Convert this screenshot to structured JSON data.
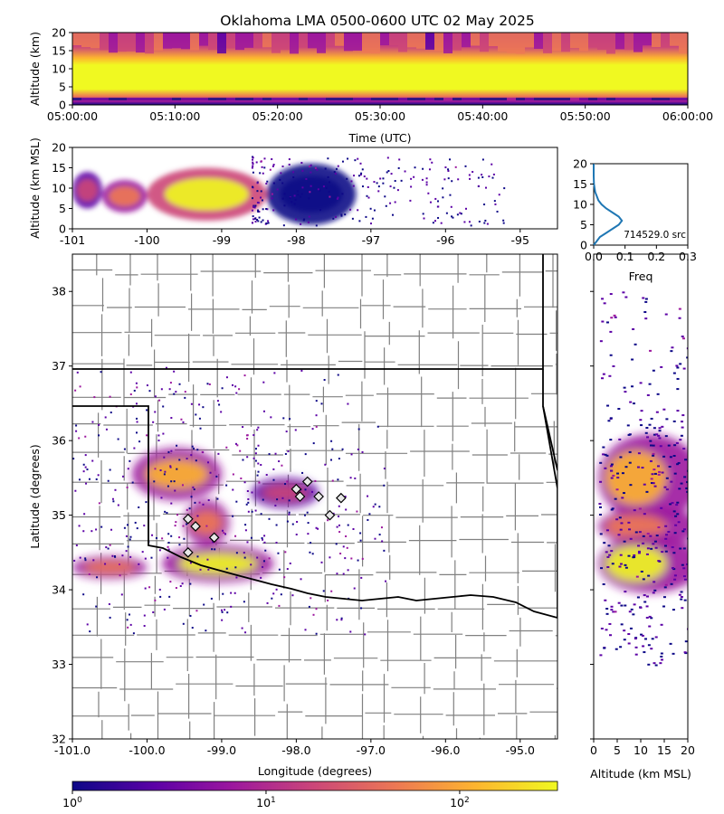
{
  "title": "Oklahoma LMA 0500-0600 UTC 02 May 2025",
  "colors": {
    "cmap": [
      "#0d0887",
      "#5c01a6",
      "#9c179e",
      "#cc4778",
      "#ed7953",
      "#fdb42f",
      "#f0f921"
    ],
    "counties": "#808080",
    "borders": "#000000",
    "diamond_fill": "#e8e8e8",
    "diamond_stroke": "#000000",
    "histogram_line": "#1f77b4"
  },
  "chart_data": [
    {
      "id": "time_height",
      "type": "heatmap",
      "xlabel": "Time (UTC)",
      "ylabel": "Altitude (km)",
      "xticks": [
        "05:00:00",
        "05:10:00",
        "05:20:00",
        "05:30:00",
        "05:40:00",
        "05:50:00",
        "06:00:00"
      ],
      "yticks": [
        "0",
        "5",
        "10",
        "15",
        "20"
      ],
      "xlim": [
        "05:00:00",
        "06:00:00"
      ],
      "ylim": [
        0,
        20
      ]
    },
    {
      "id": "lon_alt",
      "type": "heatmap",
      "ylabel": "Altitude (km MSL)",
      "xticks": [
        "-101",
        "-100",
        "-99",
        "-98",
        "-97",
        "-96",
        "-95"
      ],
      "yticks": [
        "0",
        "5",
        "10",
        "15",
        "20"
      ],
      "xlim": [
        -101,
        -94.5
      ],
      "ylim": [
        0,
        20
      ],
      "density": [
        {
          "lon": [
            -101.0,
            -100.6
          ],
          "alt": [
            5,
            14
          ],
          "level": 0.55
        },
        {
          "lon": [
            -100.6,
            -100.0
          ],
          "alt": [
            4,
            12
          ],
          "level": 0.6
        },
        {
          "lon": [
            -100.0,
            -98.4
          ],
          "alt": [
            2,
            15
          ],
          "level": 0.9
        },
        {
          "lon": [
            -98.4,
            -97.2
          ],
          "alt": [
            1,
            16
          ],
          "level": 0.1
        }
      ]
    },
    {
      "id": "alt_histogram",
      "type": "line",
      "xlabel": "Freq",
      "xticks": [
        "0.0",
        "0.1",
        "0.2",
        "0.3"
      ],
      "yticks": [
        "0",
        "5",
        "10",
        "15",
        "20"
      ],
      "xlim": [
        0,
        0.3
      ],
      "ylim": [
        0,
        20
      ],
      "annotation": "714529.0 src",
      "x": [
        0.0,
        0.01,
        0.02,
        0.04,
        0.06,
        0.08,
        0.09,
        0.08,
        0.06,
        0.04,
        0.025,
        0.015,
        0.01,
        0.005,
        0.003,
        0.001,
        0.0,
        0.0
      ],
      "y": [
        0,
        1,
        2,
        3,
        4,
        5,
        6,
        7,
        8,
        9,
        10,
        11,
        12,
        13,
        14,
        15,
        17,
        20
      ]
    },
    {
      "id": "plan_view",
      "type": "heatmap",
      "xlabel": "Longitude (degrees)",
      "ylabel": "Latitude (degrees)",
      "xticks": [
        "-101.0",
        "-100.0",
        "-99.0",
        "-98.0",
        "-97.0",
        "-96.0",
        "-95.0"
      ],
      "yticks": [
        "32",
        "33",
        "34",
        "35",
        "36",
        "37",
        "38"
      ],
      "xlim": [
        -101.0,
        -94.5
      ],
      "ylim": [
        32,
        38.5
      ],
      "density": [
        {
          "lon": [
            -100.2,
            -99.0
          ],
          "lat": [
            35.2,
            35.9
          ],
          "level": 0.85
        },
        {
          "lon": [
            -99.8,
            -98.3
          ],
          "lat": [
            34.1,
            34.6
          ],
          "level": 0.95
        },
        {
          "lon": [
            -101.0,
            -100.0
          ],
          "lat": [
            34.15,
            34.45
          ],
          "level": 0.7
        },
        {
          "lon": [
            -99.5,
            -98.9
          ],
          "lat": [
            34.6,
            35.2
          ],
          "level": 0.7
        },
        {
          "lon": [
            -98.6,
            -97.7
          ],
          "lat": [
            35.1,
            35.5
          ],
          "level": 0.5
        }
      ],
      "diamonds": [
        {
          "lon": -98.0,
          "lat": 35.35
        },
        {
          "lon": -97.95,
          "lat": 35.25
        },
        {
          "lon": -97.7,
          "lat": 35.25
        },
        {
          "lon": -97.4,
          "lat": 35.23
        },
        {
          "lon": -97.55,
          "lat": 35.0
        },
        {
          "lon": -99.45,
          "lat": 34.95
        },
        {
          "lon": -99.35,
          "lat": 34.85
        },
        {
          "lon": -99.1,
          "lat": 34.7
        },
        {
          "lon": -99.45,
          "lat": 34.5
        },
        {
          "lon": -97.85,
          "lat": 35.45
        }
      ]
    },
    {
      "id": "alt_lat",
      "type": "heatmap",
      "xlabel": "Altitude (km MSL)",
      "xticks": [
        "0",
        "5",
        "10",
        "15",
        "20"
      ],
      "xlim": [
        0,
        20
      ],
      "ylim": [
        32,
        38.5
      ]
    },
    {
      "id": "colorbar",
      "type": "colorbar",
      "scale": "log",
      "ticks": [
        "10",
        "10",
        "10"
      ],
      "tick_exponents": [
        "0",
        "1",
        "2"
      ],
      "range": [
        1,
        320
      ]
    }
  ]
}
